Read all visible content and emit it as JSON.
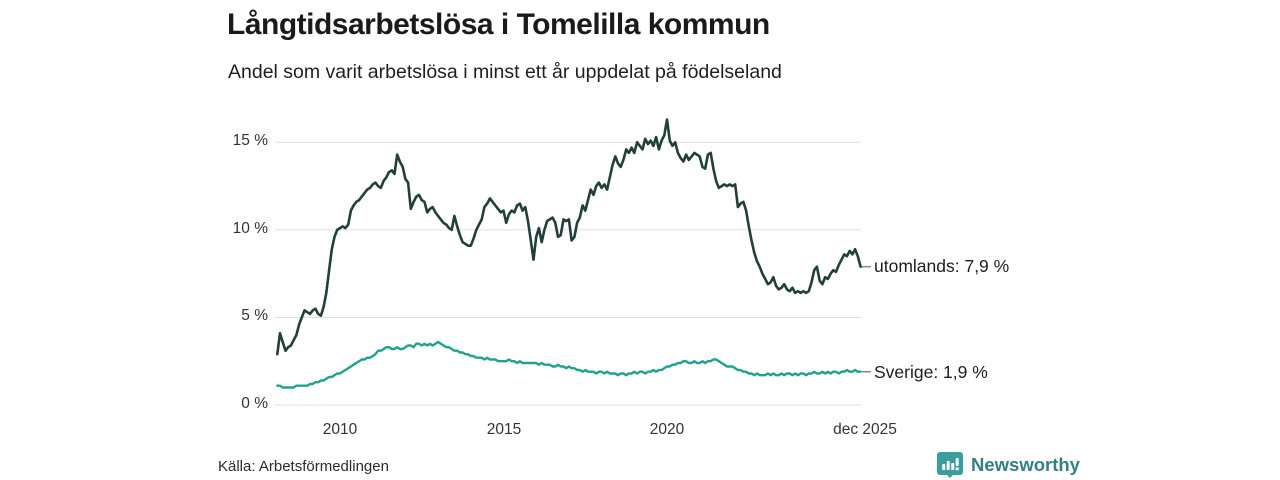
{
  "header": {
    "title": "Långtidsarbetslösa i Tomelilla kommun",
    "subtitle": "Andel som varit arbetslösa i minst ett år uppdelat på födelseland"
  },
  "footer": {
    "source": "Källa: Arbetsförmedlingen",
    "brand": "Newsworthy"
  },
  "colors": {
    "utomlands_line": "#22403a",
    "sverige_line": "#21a190",
    "gridline": "#e1e1e1",
    "label_dash": "#8a8a8a",
    "brand_teal": "#3b9d9d"
  },
  "chart_data": {
    "type": "line",
    "title": "Långtidsarbetslösa i Tomelilla kommun",
    "subtitle": "Andel som varit arbetslösa i minst ett år uppdelat på födelseland",
    "x_axis": {
      "ticks": [
        "2010",
        "2015",
        "2020",
        "dec 2025"
      ],
      "tick_years": [
        2010,
        2015,
        2020,
        2025.92
      ],
      "range_years": [
        2008.08,
        2025.92
      ],
      "unit": "year (monthly data)"
    },
    "y_axis": {
      "ticks": [
        "15 %",
        "10 %",
        "5 %",
        "0 %"
      ],
      "tick_values": [
        15,
        10,
        5,
        0
      ],
      "unit": "%",
      "grid": true
    },
    "legend_position": "end-of-line labels, right side",
    "x_start": 2008.0833,
    "x_step": 0.0833,
    "series": [
      {
        "name": "utomlands",
        "label": "utomlands: 7,9 %",
        "last_value": 7.9,
        "color": "#22403a",
        "values": [
          2.9,
          4.1,
          3.6,
          3.1,
          3.3,
          3.4,
          3.7,
          4.0,
          4.6,
          5.0,
          5.4,
          5.3,
          5.2,
          5.4,
          5.5,
          5.2,
          5.1,
          5.6,
          6.4,
          7.7,
          8.9,
          9.6,
          10.0,
          10.1,
          10.2,
          10.1,
          10.3,
          11.1,
          11.4,
          11.6,
          11.7,
          11.9,
          12.1,
          12.3,
          12.4,
          12.6,
          12.7,
          12.5,
          12.4,
          12.8,
          13.0,
          13.3,
          13.4,
          13.2,
          14.3,
          13.9,
          13.6,
          12.9,
          12.7,
          11.2,
          11.6,
          11.9,
          12.0,
          11.7,
          11.6,
          11.0,
          11.2,
          11.3,
          11.0,
          10.8,
          10.6,
          10.4,
          10.3,
          10.1,
          10.0,
          10.8,
          10.2,
          9.7,
          9.3,
          9.2,
          9.1,
          9.1,
          9.5,
          10.0,
          10.3,
          10.6,
          11.3,
          11.5,
          11.8,
          11.6,
          11.4,
          11.2,
          11.0,
          11.1,
          10.4,
          10.9,
          11.1,
          11.0,
          11.4,
          11.5,
          11.1,
          11.3,
          10.5,
          9.4,
          8.3,
          9.6,
          10.1,
          9.3,
          10.0,
          10.5,
          10.6,
          10.7,
          10.4,
          9.6,
          9.7,
          10.6,
          10.5,
          10.6,
          9.4,
          9.6,
          10.4,
          10.7,
          11.4,
          11.1,
          11.7,
          12.3,
          12.0,
          12.5,
          12.7,
          12.4,
          12.6,
          12.3,
          13.0,
          13.7,
          14.2,
          13.8,
          13.6,
          14.0,
          14.6,
          14.4,
          14.7,
          14.4,
          15.0,
          14.8,
          14.6,
          15.2,
          14.9,
          15.1,
          14.8,
          15.3,
          14.6,
          15.1,
          15.4,
          16.3,
          15.1,
          14.8,
          15.0,
          14.4,
          14.1,
          13.9,
          14.3,
          14.0,
          14.2,
          14.4,
          14.3,
          14.2,
          13.6,
          13.5,
          14.3,
          14.4,
          13.5,
          12.8,
          12.4,
          12.5,
          12.6,
          12.5,
          12.6,
          12.5,
          12.6,
          11.3,
          11.5,
          11.6,
          11.1,
          10.2,
          9.4,
          8.7,
          8.2,
          7.9,
          7.5,
          7.2,
          6.9,
          7.0,
          7.3,
          6.8,
          6.6,
          6.7,
          6.9,
          6.6,
          6.5,
          6.7,
          6.4,
          6.5,
          6.4,
          6.5,
          6.4,
          6.5,
          7.0,
          7.7,
          7.9,
          7.1,
          6.9,
          7.3,
          7.2,
          7.5,
          7.7,
          7.6,
          8.0,
          8.3,
          8.6,
          8.5,
          8.8,
          8.6,
          8.9,
          8.5,
          7.9
        ]
      },
      {
        "name": "Sverige",
        "label": "Sverige: 1,9 %",
        "last_value": 1.9,
        "color": "#21a190",
        "values": [
          1.1,
          1.1,
          1.0,
          1.0,
          1.0,
          1.0,
          1.0,
          1.1,
          1.1,
          1.1,
          1.1,
          1.1,
          1.2,
          1.2,
          1.3,
          1.3,
          1.4,
          1.4,
          1.5,
          1.6,
          1.6,
          1.7,
          1.8,
          1.8,
          1.9,
          2.0,
          2.1,
          2.2,
          2.3,
          2.4,
          2.5,
          2.6,
          2.6,
          2.7,
          2.7,
          2.8,
          2.9,
          3.1,
          3.1,
          3.2,
          3.3,
          3.3,
          3.2,
          3.2,
          3.3,
          3.2,
          3.2,
          3.3,
          3.4,
          3.4,
          3.3,
          3.5,
          3.5,
          3.4,
          3.5,
          3.4,
          3.5,
          3.4,
          3.5,
          3.6,
          3.5,
          3.4,
          3.3,
          3.3,
          3.2,
          3.1,
          3.1,
          3.0,
          3.0,
          2.9,
          2.9,
          2.8,
          2.8,
          2.7,
          2.7,
          2.7,
          2.6,
          2.7,
          2.6,
          2.6,
          2.6,
          2.5,
          2.5,
          2.5,
          2.5,
          2.6,
          2.5,
          2.5,
          2.4,
          2.5,
          2.4,
          2.4,
          2.4,
          2.4,
          2.4,
          2.4,
          2.3,
          2.4,
          2.3,
          2.3,
          2.3,
          2.2,
          2.2,
          2.3,
          2.2,
          2.2,
          2.1,
          2.2,
          2.1,
          2.1,
          2.0,
          2.0,
          1.9,
          2.0,
          1.9,
          1.9,
          1.9,
          1.8,
          1.9,
          1.9,
          1.8,
          1.9,
          1.8,
          1.8,
          1.8,
          1.7,
          1.8,
          1.8,
          1.7,
          1.8,
          1.8,
          1.9,
          1.8,
          1.9,
          1.9,
          1.8,
          1.9,
          1.9,
          2.0,
          1.9,
          2.0,
          2.0,
          2.1,
          2.2,
          2.2,
          2.3,
          2.3,
          2.4,
          2.4,
          2.5,
          2.5,
          2.4,
          2.4,
          2.5,
          2.4,
          2.4,
          2.5,
          2.4,
          2.5,
          2.5,
          2.6,
          2.6,
          2.5,
          2.4,
          2.3,
          2.2,
          2.2,
          2.2,
          2.1,
          2.0,
          2.0,
          1.9,
          1.9,
          1.8,
          1.8,
          1.7,
          1.8,
          1.7,
          1.7,
          1.7,
          1.8,
          1.7,
          1.8,
          1.7,
          1.7,
          1.8,
          1.7,
          1.8,
          1.8,
          1.7,
          1.8,
          1.7,
          1.8,
          1.8,
          1.7,
          1.8,
          1.8,
          1.9,
          1.8,
          1.8,
          1.9,
          1.8,
          1.9,
          1.8,
          1.9,
          1.9,
          1.8,
          1.9,
          1.9,
          2.0,
          1.9,
          1.9,
          2.0,
          1.9,
          1.9
        ]
      }
    ]
  }
}
